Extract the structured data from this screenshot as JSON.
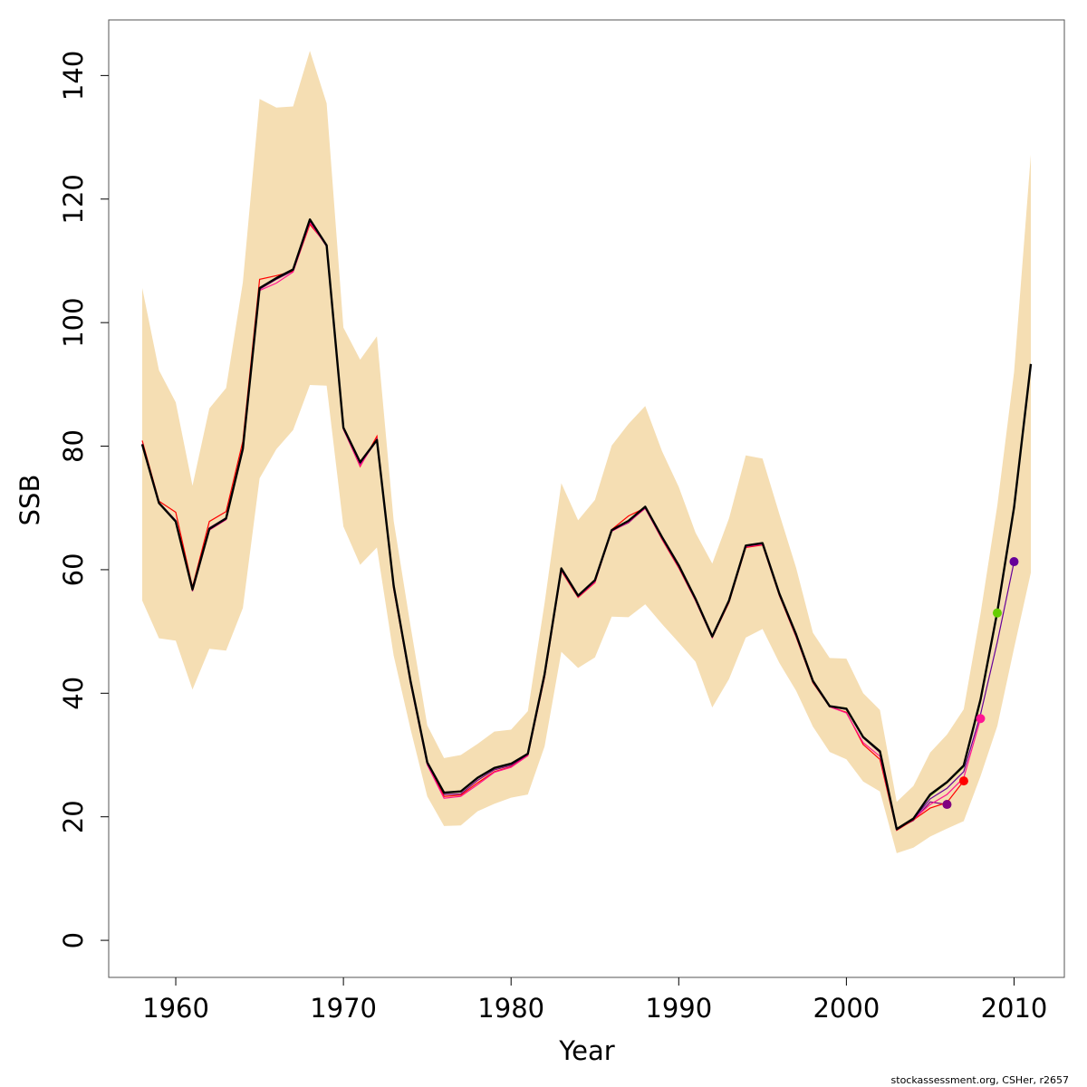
{
  "chart_data": {
    "type": "line",
    "xlabel": "Year",
    "ylabel": "SSB",
    "xlim": [
      1956,
      2013
    ],
    "ylim": [
      -6,
      149
    ],
    "x_ticks": [
      1960,
      1970,
      1980,
      1990,
      2000,
      2010
    ],
    "y_ticks": [
      0,
      20,
      40,
      60,
      80,
      100,
      120,
      140
    ],
    "x_tick_labels": [
      "1960",
      "1970",
      "1980",
      "1990",
      "2000",
      "2010"
    ],
    "y_tick_labels": [
      "0",
      "20",
      "40",
      "60",
      "80",
      "100",
      "120",
      "140"
    ],
    "grid": false,
    "legend": "none",
    "footer": "stockassessment.org, CSHer, r2657",
    "band_color": "#f5deb3",
    "years": [
      1958,
      1959,
      1960,
      1961,
      1962,
      1963,
      1964,
      1965,
      1966,
      1967,
      1968,
      1969,
      1970,
      1971,
      1972,
      1973,
      1974,
      1975,
      1976,
      1977,
      1978,
      1979,
      1980,
      1981,
      1982,
      1983,
      1984,
      1985,
      1986,
      1987,
      1988,
      1989,
      1990,
      1991,
      1992,
      1993,
      1994,
      1995,
      1996,
      1997,
      1998,
      1999,
      2000,
      2001,
      2002,
      2003,
      2004,
      2005,
      2006,
      2007,
      2008,
      2009,
      2010,
      2011
    ],
    "ssb": [
      80.3,
      70.8,
      67.8,
      56.8,
      66.6,
      68.3,
      79.6,
      105.6,
      107.2,
      108.6,
      116.7,
      112.5,
      83.0,
      77.4,
      81.0,
      57.4,
      42.0,
      28.8,
      23.9,
      24.1,
      26.3,
      27.9,
      28.6,
      30.2,
      43.1,
      60.2,
      55.8,
      58.3,
      66.4,
      67.9,
      70.2,
      65.3,
      60.7,
      55.3,
      49.2,
      55.0,
      63.9,
      64.3,
      56.1,
      49.5,
      42.0,
      37.9,
      37.5,
      32.9,
      30.6,
      18.0,
      19.7,
      23.6,
      25.6,
      28.3,
      39.0,
      53.2,
      70.1,
      93.3
    ],
    "upper": [
      105.6,
      92.3,
      87.1,
      73.6,
      86.1,
      89.4,
      106.5,
      136.2,
      134.8,
      135.0,
      144.0,
      135.5,
      99.2,
      94.0,
      97.8,
      67.9,
      50.9,
      34.8,
      29.5,
      30.0,
      31.8,
      33.8,
      34.1,
      37.1,
      54.6,
      74.0,
      68.0,
      71.3,
      80.1,
      83.6,
      86.5,
      79.2,
      73.4,
      66.0,
      61.0,
      68.3,
      78.5,
      78.0,
      69.0,
      60.3,
      49.8,
      45.7,
      45.6,
      40.0,
      37.3,
      22.4,
      25.0,
      30.4,
      33.3,
      37.4,
      52.9,
      70.4,
      92.0,
      127.2
    ],
    "lower": [
      55.0,
      48.9,
      48.5,
      40.6,
      47.2,
      46.9,
      53.8,
      74.8,
      79.5,
      82.6,
      89.9,
      89.8,
      67.0,
      60.8,
      63.6,
      46.1,
      34.2,
      23.3,
      18.5,
      18.6,
      20.9,
      22.1,
      23.1,
      23.6,
      31.4,
      46.7,
      44.1,
      45.8,
      52.4,
      52.3,
      54.4,
      51.2,
      48.2,
      45.1,
      37.7,
      42.3,
      49.0,
      50.4,
      44.9,
      40.4,
      34.6,
      30.5,
      29.3,
      25.7,
      24.1,
      14.1,
      15.0,
      16.8,
      18.1,
      19.3,
      26.6,
      34.7,
      47.3,
      59.5
    ],
    "retro": [
      {
        "color": "#800080",
        "end_year": 2006,
        "values": [
          80.2,
          70.9,
          68.0,
          56.9,
          66.8,
          68.4,
          79.5,
          105.4,
          107.0,
          108.4,
          116.5,
          112.3,
          82.9,
          77.1,
          80.9,
          57.2,
          41.9,
          28.6,
          23.6,
          23.7,
          25.9,
          27.6,
          28.3,
          30.0,
          42.8,
          60.0,
          55.7,
          58.2,
          66.3,
          67.6,
          70.0,
          65.1,
          60.6,
          55.1,
          49.1,
          54.9,
          63.8,
          64.1,
          56.0,
          49.3,
          41.8,
          37.8,
          37.4,
          32.8,
          30.4,
          18.0,
          19.4,
          22.4,
          22.0
        ]
      },
      {
        "color": "#ff0000",
        "end_year": 2007,
        "values": [
          80.9,
          71.1,
          69.3,
          57.2,
          67.8,
          69.4,
          80.8,
          107.0,
          107.6,
          108.3,
          115.9,
          112.6,
          82.8,
          76.7,
          81.6,
          56.9,
          41.7,
          28.6,
          23.3,
          23.5,
          25.5,
          27.3,
          28.1,
          29.9,
          42.6,
          59.8,
          55.5,
          57.9,
          66.5,
          68.7,
          70.0,
          64.9,
          60.3,
          55.0,
          49.0,
          54.7,
          63.6,
          64.0,
          55.8,
          49.1,
          41.7,
          37.8,
          36.9,
          31.7,
          29.3,
          17.8,
          19.5,
          21.4,
          22.3,
          25.8
        ]
      },
      {
        "color": "#ff1493",
        "end_year": 2008,
        "values": [
          80.4,
          70.7,
          67.9,
          56.5,
          66.4,
          68.1,
          79.3,
          105.2,
          106.4,
          108.2,
          116.2,
          112.4,
          82.7,
          76.8,
          81.2,
          57.0,
          41.6,
          28.4,
          23.0,
          23.3,
          25.2,
          27.2,
          28.0,
          29.9,
          42.7,
          59.9,
          55.6,
          58.0,
          66.2,
          67.7,
          69.9,
          65.0,
          60.4,
          55.0,
          49.0,
          54.8,
          63.7,
          64.1,
          55.9,
          49.2,
          41.8,
          37.8,
          36.8,
          32.0,
          29.8,
          17.9,
          19.6,
          22.0,
          23.6,
          26.3,
          35.9
        ]
      },
      {
        "color": "#66cd00",
        "end_year": 2009,
        "values": [
          80.3,
          70.8,
          67.8,
          56.8,
          66.6,
          68.3,
          79.6,
          105.6,
          107.2,
          108.6,
          116.7,
          112.5,
          83.0,
          77.4,
          81.0,
          57.4,
          42.0,
          28.8,
          23.9,
          24.1,
          26.3,
          27.9,
          28.6,
          30.2,
          43.1,
          60.2,
          55.8,
          58.3,
          66.4,
          67.9,
          70.2,
          65.3,
          60.7,
          55.3,
          49.2,
          55.0,
          63.9,
          64.3,
          56.1,
          49.5,
          42.0,
          37.9,
          37.6,
          32.9,
          30.7,
          18.1,
          19.8,
          23.4,
          25.5,
          28.1,
          38.6,
          53.0
        ]
      },
      {
        "color": "#660099",
        "end_year": 2010,
        "values": [
          80.3,
          70.8,
          67.8,
          56.8,
          66.6,
          68.3,
          79.6,
          105.6,
          107.2,
          108.6,
          116.7,
          112.5,
          83.0,
          77.4,
          81.0,
          57.4,
          42.0,
          28.8,
          23.9,
          24.1,
          26.3,
          27.9,
          28.6,
          30.2,
          43.1,
          60.2,
          55.8,
          58.3,
          66.4,
          67.9,
          70.2,
          65.3,
          60.7,
          55.3,
          49.2,
          55.0,
          63.9,
          64.3,
          56.1,
          49.5,
          42.0,
          37.9,
          37.5,
          32.8,
          30.5,
          18.0,
          19.6,
          22.9,
          24.6,
          27.3,
          36.6,
          48.3,
          61.3
        ]
      }
    ]
  }
}
